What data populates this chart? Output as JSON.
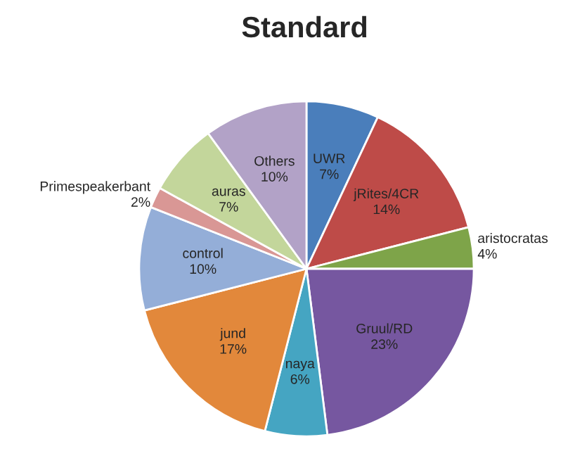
{
  "chart_data": {
    "type": "pie",
    "title": "Standard",
    "categories": [
      "UWR",
      "jRites/4CR",
      "aristocratas",
      "Gruul/RD",
      "naya",
      "jund",
      "control",
      "Primespeakerbant",
      "auras",
      "Others"
    ],
    "values": [
      7,
      14,
      4,
      23,
      6,
      17,
      10,
      2,
      7,
      10
    ],
    "value_labels": [
      "7%",
      "14%",
      "4%",
      "23%",
      "6%",
      "17%",
      "10%",
      "2%",
      "7%",
      "10%"
    ],
    "colors": [
      "#4a7ebb",
      "#be4b48",
      "#7ea449",
      "#7657a0",
      "#45a5c2",
      "#e2883b",
      "#94aed8",
      "#d99795",
      "#c3d69b",
      "#b2a2c7"
    ],
    "legend": false
  }
}
